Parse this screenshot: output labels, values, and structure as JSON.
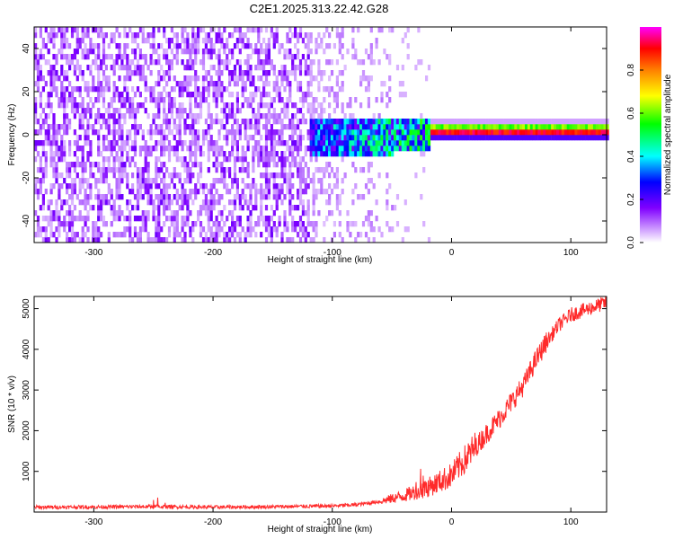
{
  "title": "C2E1.2025.313.22.42.G28",
  "chart_data": [
    {
      "type": "heatmap",
      "xlabel": "Height of straight line (km)",
      "ylabel": "Frequency (Hz)",
      "xlim": [
        -350,
        130
      ],
      "ylim": [
        -50,
        50
      ],
      "x_ticks": [
        -300,
        -200,
        -100,
        0,
        100
      ],
      "y_ticks": [
        -40,
        -20,
        0,
        20,
        40
      ],
      "colorbar": {
        "label": "Normalized spectral amplitude",
        "range": [
          0,
          1
        ],
        "ticks": [
          "0.0",
          "0.2",
          "0.4",
          "0.6",
          "0.8"
        ],
        "colors": [
          "#ffffff",
          "#8000ff",
          "#0000ff",
          "#00ffff",
          "#00ff00",
          "#ffff00",
          "#ff8000",
          "#ff0000",
          "#ff00ff"
        ]
      },
      "regions": [
        {
          "x": [
            -350,
            -120
          ],
          "description_level": 0.15,
          "f_range": [
            -50,
            50
          ]
        },
        {
          "x": [
            -120,
            -20
          ],
          "f_range": [
            -12,
            6
          ],
          "peak_level": 0.5
        },
        {
          "x": [
            -20,
            130
          ],
          "f_center": 0,
          "peak_level": 0.95
        }
      ]
    },
    {
      "type": "line",
      "xlabel": "Height of straight line (km)",
      "ylabel": "SNR (10 * v/v)",
      "xlim": [
        -350,
        130
      ],
      "ylim": [
        0,
        5300
      ],
      "x_ticks": [
        -300,
        -200,
        -100,
        0,
        100
      ],
      "y_ticks": [
        1000,
        2000,
        3000,
        4000,
        5000
      ],
      "color": "#ff2a2a",
      "x": [
        -350,
        -300,
        -250,
        -200,
        -150,
        -100,
        -80,
        -60,
        -40,
        -20,
        0,
        20,
        40,
        60,
        70,
        80,
        90,
        100,
        115,
        130
      ],
      "y": [
        120,
        125,
        135,
        120,
        130,
        150,
        180,
        260,
        400,
        600,
        900,
        1600,
        2300,
        3100,
        3700,
        4200,
        4600,
        4850,
        5000,
        5150
      ]
    }
  ]
}
